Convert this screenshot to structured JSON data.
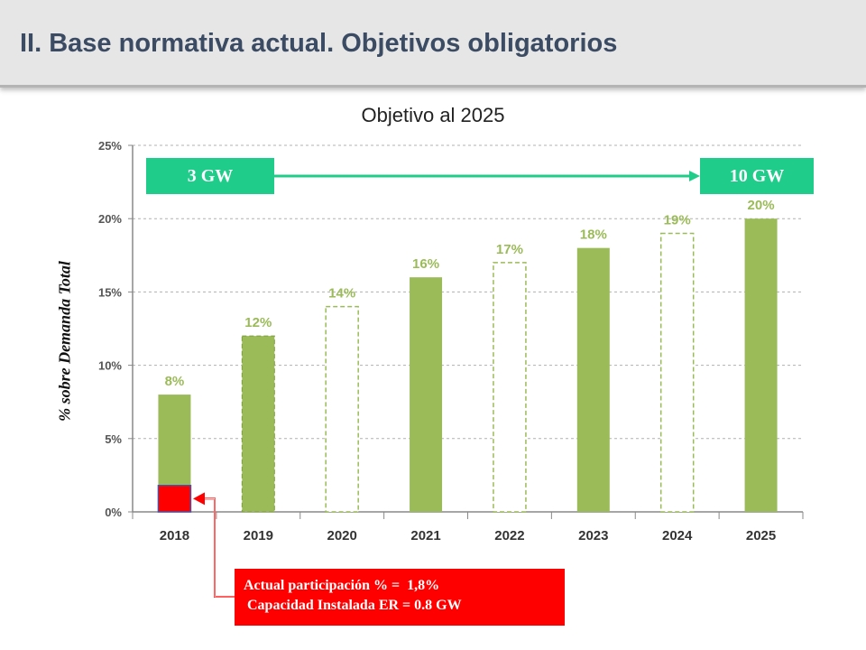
{
  "header": {
    "title": "II. Base normativa actual. Objetivos obligatorios"
  },
  "colors": {
    "bar": "#9bbb59",
    "label": "#9bbb59",
    "gw_box": "#1fcc8a",
    "arrow": "#1fcc8a",
    "marker": "#ff0000",
    "note_box": "#ff0000"
  },
  "chart_data": {
    "type": "bar",
    "title": "Objetivo al 2025",
    "xlabel": "",
    "ylabel": "% sobre Demanda Total",
    "ylim": [
      0,
      25
    ],
    "yticks": [
      0,
      5,
      10,
      15,
      20,
      25
    ],
    "ytick_labels": [
      "0%",
      "5%",
      "10%",
      "15%",
      "20%",
      "25%"
    ],
    "grid": true,
    "categories": [
      "2018",
      "2019",
      "2020",
      "2021",
      "2022",
      "2023",
      "2024",
      "2025"
    ],
    "values": [
      8,
      12,
      14,
      16,
      17,
      18,
      19,
      20
    ],
    "value_labels": [
      "8%",
      "12%",
      "14%",
      "16%",
      "17%",
      "18%",
      "19%",
      "20%"
    ],
    "bar_styles": [
      "solid",
      "solid-dashed",
      "hollow",
      "solid",
      "hollow",
      "solid",
      "hollow",
      "solid"
    ],
    "current_value": 1.8,
    "annotations": {
      "start_capacity": "3 GW",
      "end_capacity": "10 GW",
      "note_lines": [
        "Actual participación % =  1,8%",
        " Capacidad Instalada ER = 0.8 GW"
      ]
    }
  }
}
